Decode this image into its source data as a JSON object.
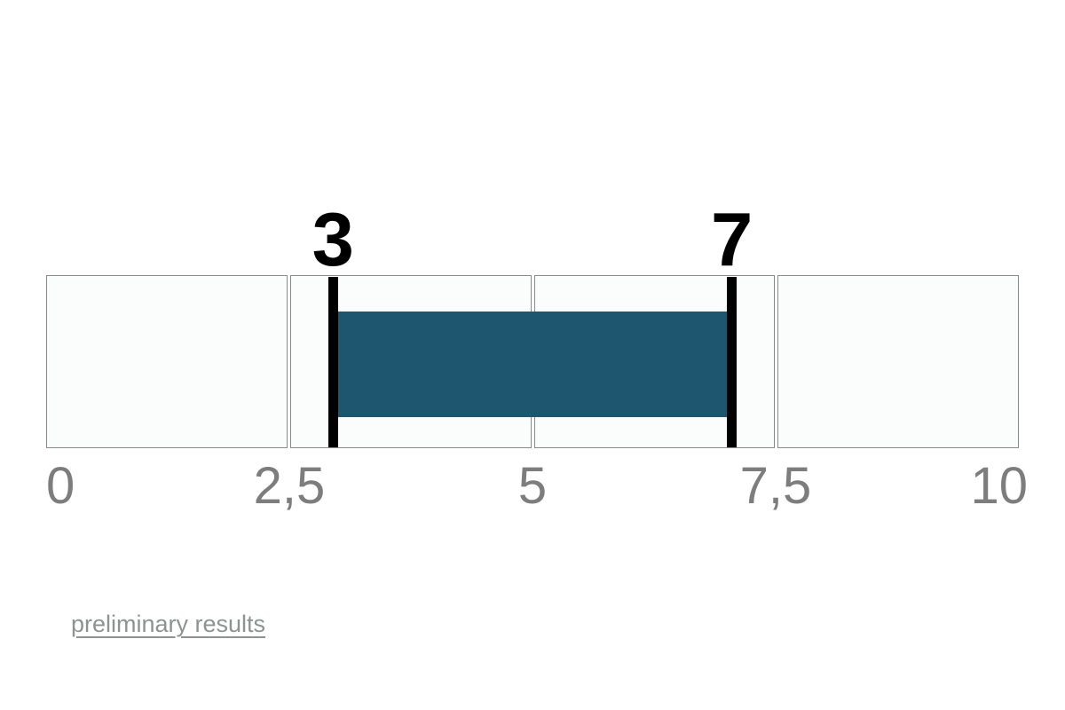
{
  "chart_data": {
    "type": "bar",
    "subtype": "horizontal-range-indicator",
    "title": "",
    "xlabel": "",
    "ylabel": "",
    "xlim": [
      0,
      10
    ],
    "segments": 4,
    "ticks": [
      {
        "value": 0,
        "label": "0"
      },
      {
        "value": 2.5,
        "label": "2,5"
      },
      {
        "value": 5,
        "label": "5"
      },
      {
        "value": 7.5,
        "label": "7,5"
      },
      {
        "value": 10,
        "label": "10"
      }
    ],
    "range": {
      "start": 3,
      "end": 7
    },
    "markers": [
      {
        "value": 3,
        "label": "3"
      },
      {
        "value": 7,
        "label": "7"
      }
    ]
  },
  "footer": {
    "link_label": "preliminary results"
  },
  "colors": {
    "background": "#ffffff",
    "bar_fill": "#1e5670",
    "marker": "#000000",
    "cell_background": "#fbfdfd",
    "cell_border": "#8a8a8a",
    "tick_label": "#7d7d7d",
    "marker_label": "#000000",
    "link": "#8d9392"
  }
}
